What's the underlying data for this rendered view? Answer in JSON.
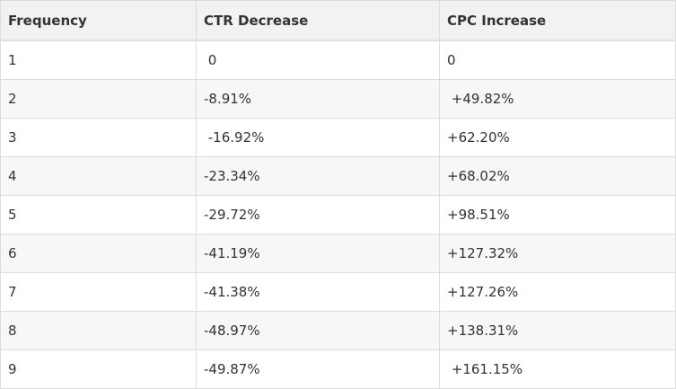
{
  "table": {
    "headers": [
      "Frequency",
      "CTR Decrease",
      "CPC Increase"
    ],
    "rows": [
      {
        "frequency": "1",
        "ctr": " 0",
        "cpc": "0"
      },
      {
        "frequency": "2",
        "ctr": "-8.91%",
        "cpc": " +49.82%"
      },
      {
        "frequency": "3",
        "ctr": " -16.92%",
        "cpc": "+62.20%"
      },
      {
        "frequency": "4",
        "ctr": "-23.34%",
        "cpc": "+68.02%"
      },
      {
        "frequency": "5",
        "ctr": "-29.72%",
        "cpc": "+98.51%"
      },
      {
        "frequency": "6",
        "ctr": "-41.19%",
        "cpc": "+127.32%"
      },
      {
        "frequency": "7",
        "ctr": "-41.38%",
        "cpc": "+127.26%"
      },
      {
        "frequency": "8",
        "ctr": "-48.97%",
        "cpc": "+138.31%"
      },
      {
        "frequency": "9",
        "ctr": "-49.87%",
        "cpc": " +161.15%"
      }
    ]
  }
}
